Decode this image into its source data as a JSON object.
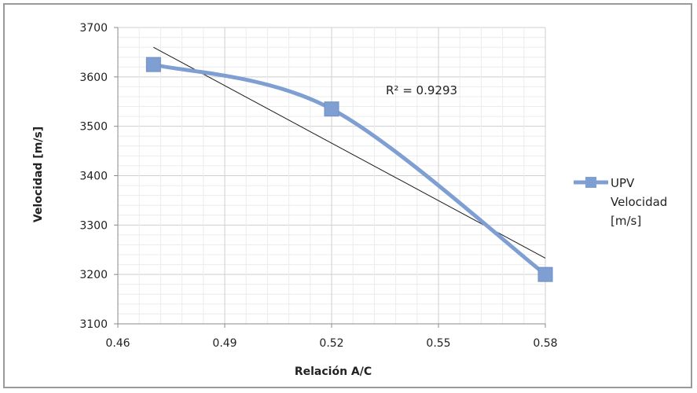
{
  "chart_data": {
    "type": "scatter",
    "title": "",
    "xlabel": "Relación A/C",
    "ylabel": "Velocidad [m/s]",
    "xlim": [
      0.46,
      0.58
    ],
    "ylim": [
      3100,
      3700
    ],
    "xticks": [
      "0.46",
      "0.49",
      "0.52",
      "0.55",
      "0.58"
    ],
    "yticks": [
      "3700",
      "3600",
      "3500",
      "3400",
      "3300",
      "3200",
      "3100"
    ],
    "grid": true,
    "legend_position": "right",
    "series": [
      {
        "name": "UPV Velocidad [m/s]",
        "legend_lines": [
          "UPV",
          "Velocidad",
          "[m/s]"
        ],
        "x": [
          0.47,
          0.52,
          0.58
        ],
        "y": [
          3625,
          3535,
          3200
        ],
        "smooth": true,
        "marker": "square",
        "color": "#7f9fd3"
      }
    ],
    "trendline": {
      "type": "linear",
      "x": [
        0.47,
        0.58
      ],
      "y": [
        3660,
        3233
      ],
      "color": "#1a1a1a",
      "annotation": "R² = 0.9293"
    }
  }
}
